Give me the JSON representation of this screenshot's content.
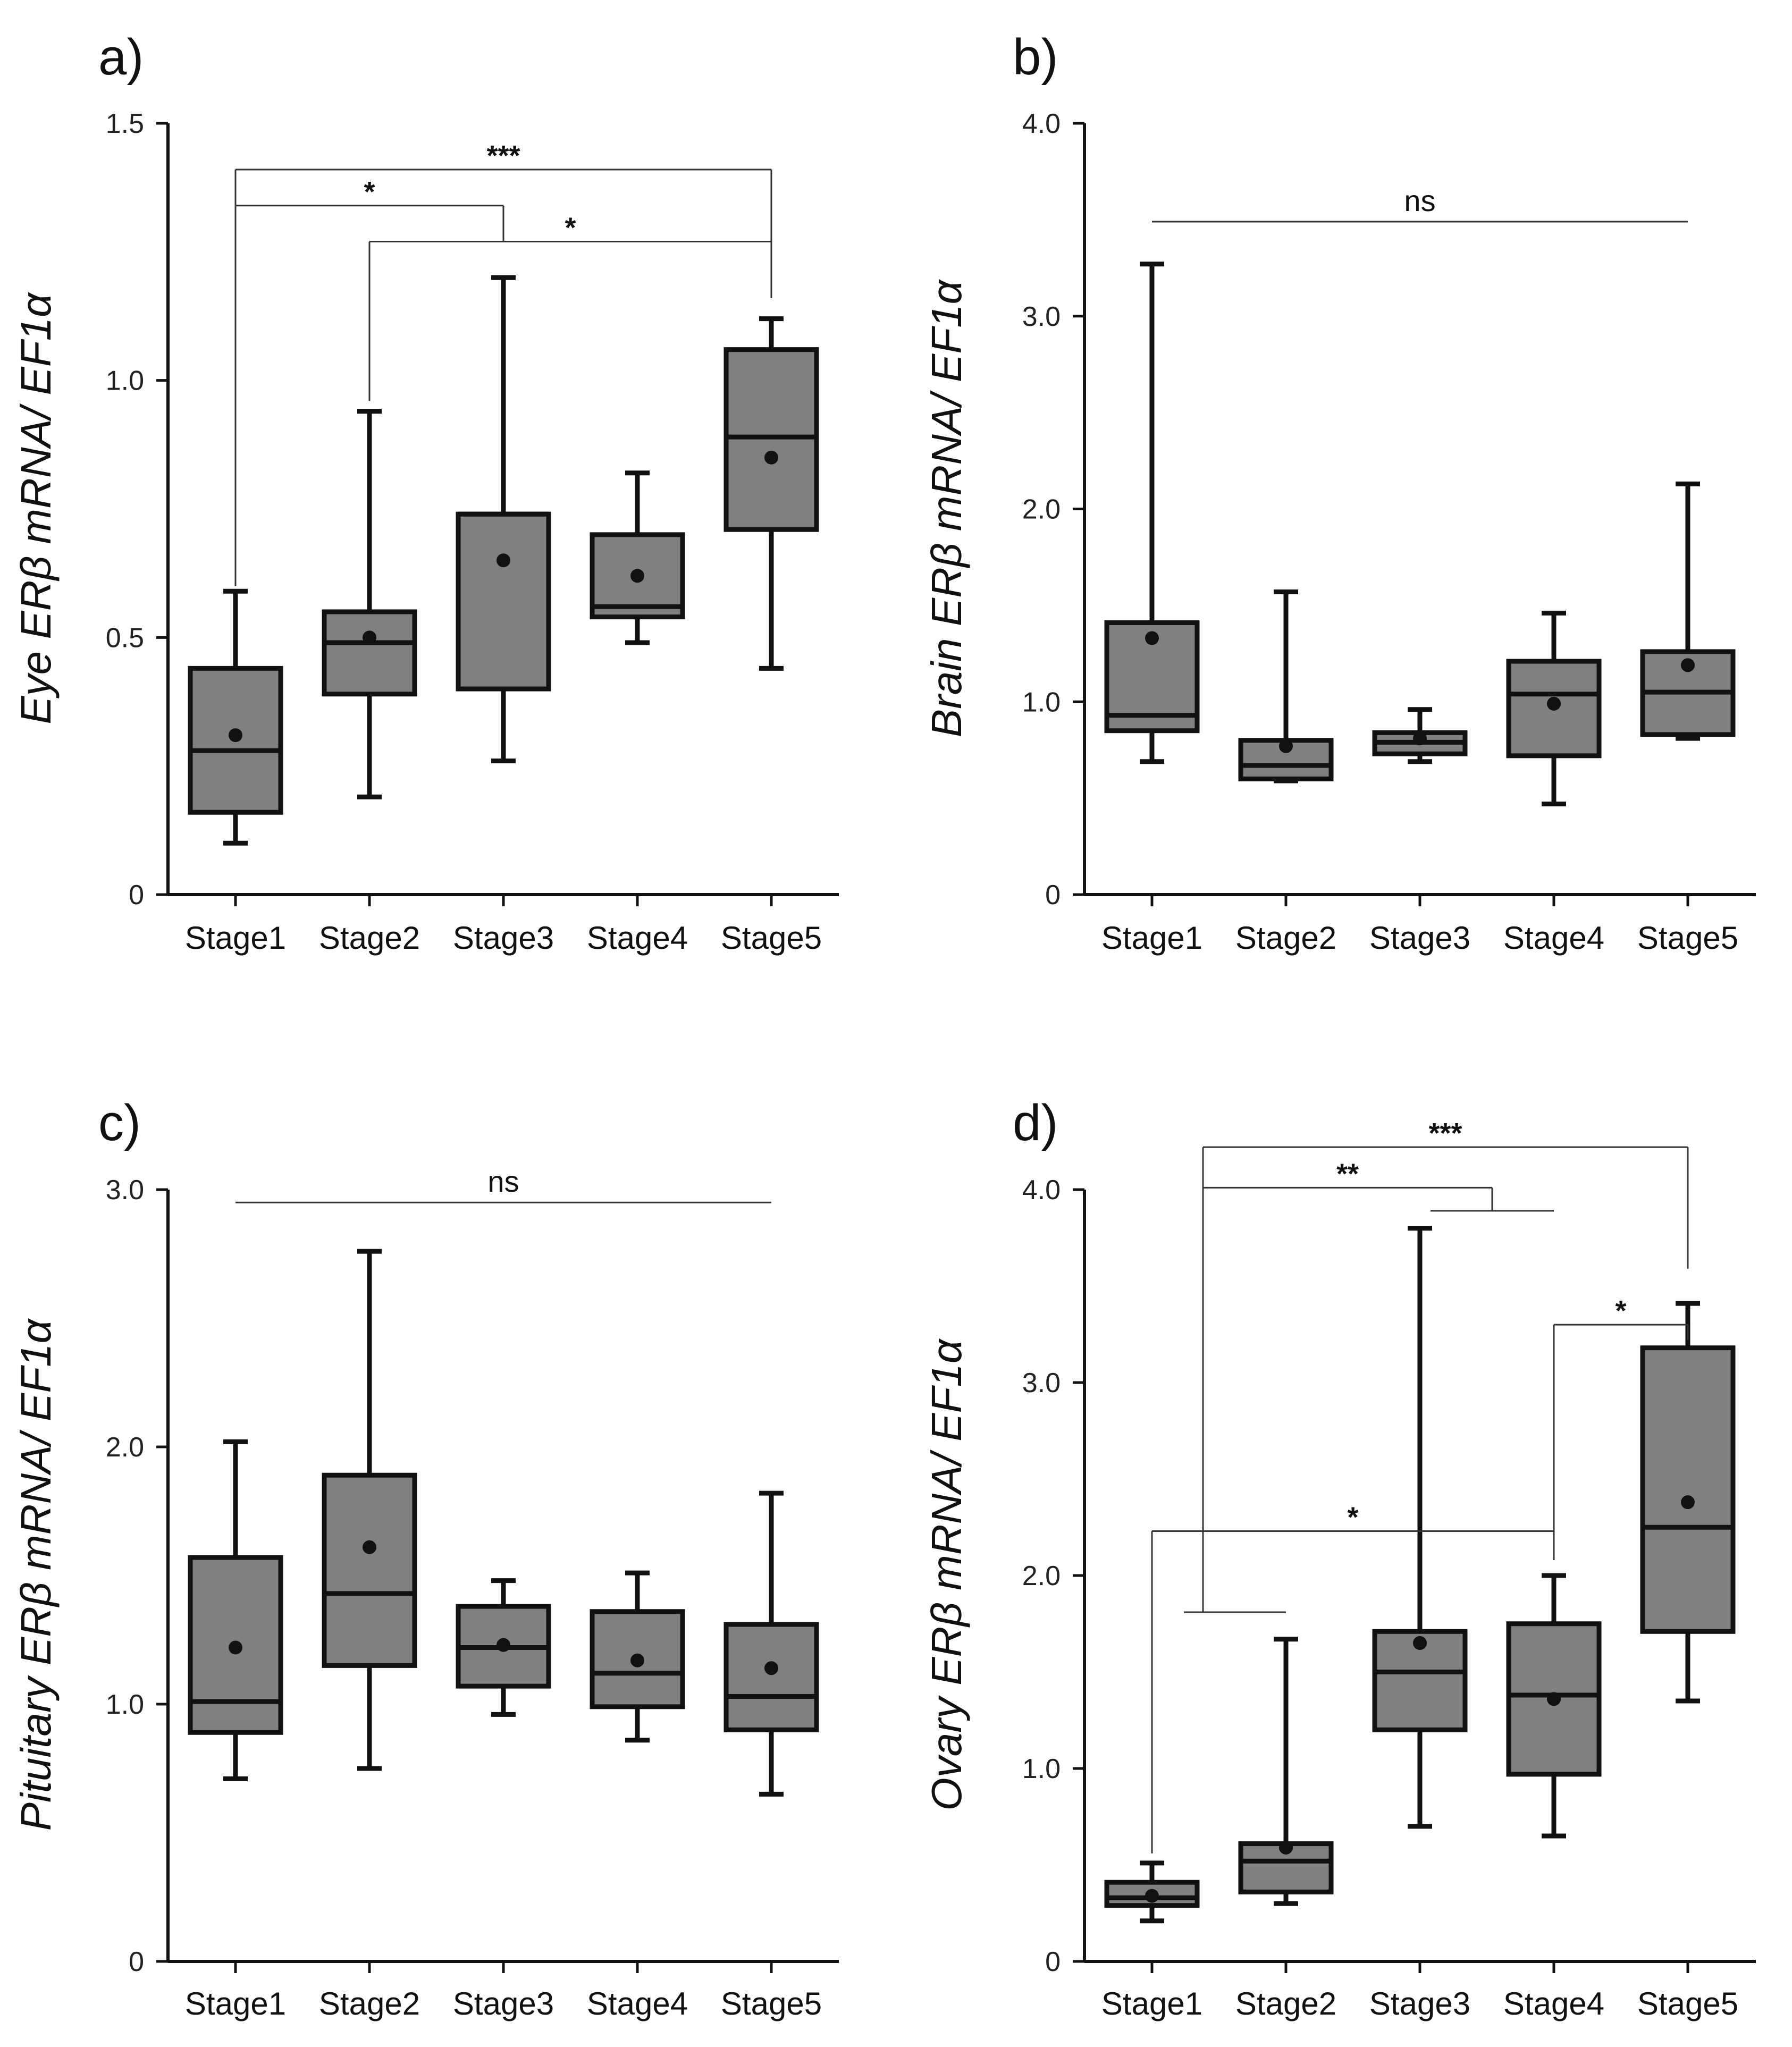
{
  "chart_data": [
    {
      "type": "box",
      "panel_label": "a)",
      "ylabel": "Eye ERβ mRNA/ EF1α",
      "ylim": [
        0,
        1.5
      ],
      "yticks": [
        0,
        0.5,
        1.0,
        1.5
      ],
      "ytick_labels": [
        "0",
        "0.5",
        "1.0",
        "1.5"
      ],
      "categories": [
        "Stage1",
        "Stage2",
        "Stage3",
        "Stage4",
        "Stage5"
      ],
      "boxes": [
        {
          "min": 0.1,
          "q1": 0.16,
          "median": 0.28,
          "q3": 0.44,
          "max": 0.59,
          "mean": 0.31
        },
        {
          "min": 0.19,
          "q1": 0.39,
          "median": 0.49,
          "q3": 0.55,
          "max": 0.94,
          "mean": 0.5
        },
        {
          "min": 0.26,
          "q1": 0.4,
          "median": 0.74,
          "q3": 0.74,
          "max": 1.2,
          "mean": 0.65
        },
        {
          "min": 0.49,
          "q1": 0.54,
          "median": 0.56,
          "q3": 0.7,
          "max": 0.82,
          "mean": 0.62
        },
        {
          "min": 0.44,
          "q1": 0.71,
          "median": 0.89,
          "q3": 1.06,
          "max": 1.12,
          "mean": 0.85
        }
      ],
      "comparisons": [
        {
          "label": "***",
          "from": 0,
          "to": 4,
          "y": 1.41,
          "left_end": 0.6,
          "right_end": 1.16
        },
        {
          "label": "*",
          "from": 0,
          "to": 2,
          "y": 1.34,
          "left_end": 0.6,
          "right_end": 1.27
        },
        {
          "label": "*",
          "from": 1,
          "to": 4,
          "y": 1.27,
          "left_end": 0.96,
          "right_end": 1.16
        }
      ],
      "ns_line": null
    },
    {
      "type": "box",
      "panel_label": "b)",
      "ylabel": "Brain ERβ mRNA/ EF1α",
      "ylim": [
        0,
        4.0
      ],
      "yticks": [
        0,
        1.0,
        2.0,
        3.0,
        4.0
      ],
      "ytick_labels": [
        "0",
        "1.0",
        "2.0",
        "3.0",
        "4.0"
      ],
      "categories": [
        "Stage1",
        "Stage2",
        "Stage3",
        "Stage4",
        "Stage5"
      ],
      "boxes": [
        {
          "min": 0.69,
          "q1": 0.85,
          "median": 0.93,
          "q3": 1.41,
          "max": 3.27,
          "mean": 1.33
        },
        {
          "min": 0.59,
          "q1": 0.6,
          "median": 0.67,
          "q3": 0.8,
          "max": 1.57,
          "mean": 0.77
        },
        {
          "min": 0.69,
          "q1": 0.73,
          "median": 0.79,
          "q3": 0.84,
          "max": 0.96,
          "mean": 0.81
        },
        {
          "min": 0.47,
          "q1": 0.72,
          "median": 1.04,
          "q3": 1.21,
          "max": 1.46,
          "mean": 0.99
        },
        {
          "min": 0.81,
          "q1": 0.83,
          "median": 1.05,
          "q3": 1.26,
          "max": 2.13,
          "mean": 1.19
        }
      ],
      "comparisons": [],
      "ns_line": {
        "label": "ns",
        "from": 0,
        "to": 4,
        "y": 3.49
      }
    },
    {
      "type": "box",
      "panel_label": "c)",
      "ylabel": "Pituitary ERβ mRNA/ EF1α",
      "ylim": [
        0,
        3.0
      ],
      "yticks": [
        0,
        1.0,
        2.0,
        3.0
      ],
      "ytick_labels": [
        "0",
        "1.0",
        "2.0",
        "3.0"
      ],
      "categories": [
        "Stage1",
        "Stage2",
        "Stage3",
        "Stage4",
        "Stage5"
      ],
      "boxes": [
        {
          "min": 0.71,
          "q1": 0.89,
          "median": 1.01,
          "q3": 1.57,
          "max": 2.02,
          "mean": 1.22
        },
        {
          "min": 0.75,
          "q1": 1.15,
          "median": 1.43,
          "q3": 1.89,
          "max": 2.76,
          "mean": 1.61
        },
        {
          "min": 0.96,
          "q1": 1.07,
          "median": 1.22,
          "q3": 1.38,
          "max": 1.48,
          "mean": 1.23
        },
        {
          "min": 0.86,
          "q1": 0.99,
          "median": 1.12,
          "q3": 1.36,
          "max": 1.51,
          "mean": 1.17
        },
        {
          "min": 0.65,
          "q1": 0.9,
          "median": 1.03,
          "q3": 1.31,
          "max": 1.82,
          "mean": 1.14
        }
      ],
      "comparisons": [],
      "ns_line": {
        "label": "ns",
        "from": 0,
        "to": 4,
        "y": 2.95
      }
    },
    {
      "type": "box",
      "panel_label": "d)",
      "ylabel": "Ovary ERβ mRNA/ EF1α",
      "ylim": [
        0,
        4.0
      ],
      "yticks": [
        0,
        1.0,
        2.0,
        3.0,
        4.0
      ],
      "ytick_labels": [
        "0",
        "1.0",
        "2.0",
        "3.0",
        "4.0"
      ],
      "categories": [
        "Stage1",
        "Stage2",
        "Stage3",
        "Stage4",
        "Stage5"
      ],
      "boxes": [
        {
          "min": 0.21,
          "q1": 0.29,
          "median": 0.33,
          "q3": 0.41,
          "max": 0.51,
          "mean": 0.34
        },
        {
          "min": 0.3,
          "q1": 0.36,
          "median": 0.52,
          "q3": 0.61,
          "max": 1.67,
          "mean": 0.59
        },
        {
          "min": 0.7,
          "q1": 1.2,
          "median": 1.5,
          "q3": 1.71,
          "max": 3.8,
          "mean": 1.65
        },
        {
          "min": 0.65,
          "q1": 0.97,
          "median": 1.38,
          "q3": 1.75,
          "max": 2.0,
          "mean": 1.36
        },
        {
          "min": 1.35,
          "q1": 1.71,
          "median": 2.25,
          "q3": 3.18,
          "max": 3.41,
          "mean": 2.38
        }
      ],
      "comparisons": [
        {
          "label": "***",
          "group_left": [
            0,
            1
          ],
          "to": 4,
          "y": 4.22,
          "left_end": 1.81,
          "right_end": 3.59
        },
        {
          "label": "**",
          "group_left": [
            0,
            1
          ],
          "group_right": [
            2,
            3
          ],
          "y": 4.01,
          "left_end": 1.81,
          "right_end": 3.89
        },
        {
          "label": "*",
          "from": 0,
          "to": 3,
          "y": 2.23,
          "left_end": 0.56,
          "right_end": 2.08
        },
        {
          "label": "*",
          "from": 3,
          "to": 4,
          "y": 3.3,
          "left_end": 2.08,
          "right_end": 3.22
        }
      ],
      "ns_line": null
    }
  ]
}
